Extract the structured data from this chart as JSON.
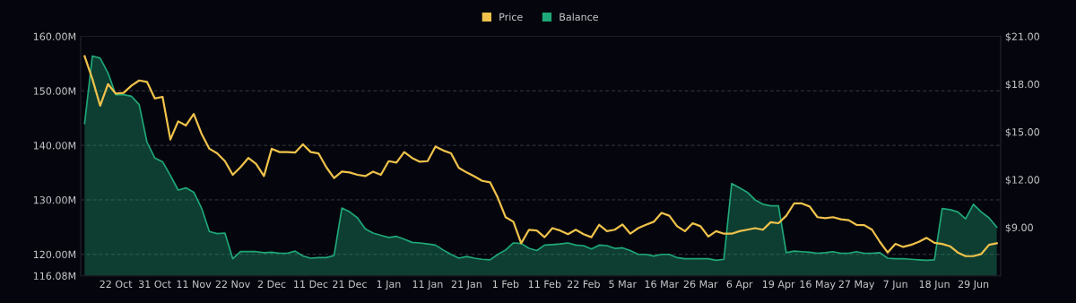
{
  "chart_data": {
    "type": "area",
    "categories": [
      null,
      null,
      null,
      null,
      "22 Oct",
      null,
      null,
      null,
      null,
      "31 Oct",
      null,
      null,
      null,
      null,
      "11 Nov",
      null,
      null,
      null,
      null,
      "22 Nov",
      null,
      null,
      null,
      null,
      "2 Dec",
      null,
      null,
      null,
      null,
      "11 Dec",
      null,
      null,
      null,
      null,
      "21 Dec",
      null,
      null,
      null,
      null,
      "1 Jan",
      null,
      null,
      null,
      null,
      "11 Jan",
      null,
      null,
      null,
      null,
      "21 Jan",
      null,
      null,
      null,
      null,
      "1 Feb",
      null,
      null,
      null,
      null,
      "11 Feb",
      null,
      null,
      null,
      null,
      "22 Feb",
      null,
      null,
      null,
      null,
      "5 Mar",
      null,
      null,
      null,
      null,
      "16 Mar",
      null,
      null,
      null,
      null,
      "26 Mar",
      null,
      null,
      null,
      null,
      "6 Apr",
      null,
      null,
      null,
      null,
      "19 Apr",
      null,
      null,
      null,
      null,
      "16 May",
      null,
      null,
      null,
      null,
      "27 May",
      null,
      null,
      null,
      null,
      "7 Jun",
      null,
      null,
      null,
      null,
      "18 Jun",
      null,
      null,
      null,
      null,
      "29 Jun",
      null,
      null,
      null
    ],
    "series": [
      {
        "name": "Price",
        "type": "line",
        "axis": "y2",
        "color": "#f0c24b",
        "values": [
          19.76,
          18.32,
          16.64,
          18.0,
          17.4,
          17.45,
          17.9,
          18.23,
          18.14,
          17.1,
          17.2,
          14.52,
          15.66,
          15.4,
          16.12,
          14.88,
          13.94,
          13.65,
          13.16,
          12.3,
          12.78,
          13.36,
          12.98,
          12.22,
          13.94,
          13.73,
          13.73,
          13.7,
          14.22,
          13.73,
          13.65,
          12.78,
          12.1,
          12.5,
          12.45,
          12.3,
          12.22,
          12.5,
          12.3,
          13.16,
          13.07,
          13.73,
          13.36,
          13.12,
          13.16,
          14.08,
          13.83,
          13.65,
          12.74,
          12.45,
          12.2,
          11.92,
          11.83,
          10.86,
          9.64,
          9.35,
          8.0,
          8.85,
          8.8,
          8.38,
          8.95,
          8.8,
          8.57,
          8.85,
          8.57,
          8.38,
          9.16,
          8.76,
          8.85,
          9.18,
          8.6,
          8.95,
          9.16,
          9.35,
          9.91,
          9.73,
          9.07,
          8.76,
          9.26,
          9.07,
          8.42,
          8.76,
          8.6,
          8.6,
          8.76,
          8.85,
          8.95,
          8.85,
          9.32,
          9.26,
          9.73,
          10.5,
          10.5,
          10.31,
          9.64,
          9.58,
          9.64,
          9.51,
          9.45,
          9.16,
          9.14,
          8.85,
          8.09,
          7.42,
          7.96,
          7.77,
          7.9,
          8.09,
          8.34,
          8.03,
          7.96,
          7.81,
          7.42,
          7.19,
          7.19,
          7.32,
          7.9,
          8.0
        ]
      },
      {
        "name": "Balance",
        "color": "#1fa878",
        "values": [
          144,
          156.4,
          156,
          153.3,
          149.3,
          149.3,
          149,
          147.5,
          140.6,
          137.7,
          137,
          134.5,
          131.8,
          132.2,
          131.4,
          128.5,
          124.2,
          123.8,
          123.9,
          119.2,
          120.5,
          120.5,
          120.5,
          120.3,
          120.4,
          120.2,
          120.2,
          120.6,
          119.7,
          119.3,
          119.4,
          119.4,
          119.8,
          128.5,
          127.8,
          126.7,
          124.7,
          123.9,
          123.5,
          123.1,
          123.3,
          122.8,
          122.2,
          122.1,
          121.9,
          121.7,
          120.8,
          120,
          119.3,
          119.6,
          119.3,
          119.1,
          119,
          120,
          120.8,
          122.1,
          122,
          121.1,
          120.7,
          121.7,
          121.8,
          121.9,
          122.1,
          121.7,
          121.6,
          121,
          121.7,
          121.6,
          121.1,
          121.2,
          120.7,
          120,
          120,
          119.7,
          120,
          120,
          119.4,
          119.2,
          119.2,
          119.2,
          119.2,
          118.9,
          119.1,
          133,
          132.2,
          131.4,
          130,
          129.2,
          128.9,
          128.9,
          120.3,
          120.6,
          120.5,
          120.4,
          120.2,
          120.3,
          120.5,
          120.2,
          120.2,
          120.5,
          120.2,
          120.2,
          120.3,
          119.3,
          119.2,
          119.2,
          119.1,
          119,
          118.9,
          119,
          128.4,
          128.2,
          127.8,
          126.5,
          129.2,
          127.8,
          126.7,
          125
        ]
      }
    ],
    "ylim": [
      116.08,
      160
    ],
    "yticks": [
      {
        "value": 116.08,
        "label": "116.08M"
      },
      {
        "value": 120,
        "label": "120.00M"
      },
      {
        "value": 130,
        "label": "130.00M"
      },
      {
        "value": 140,
        "label": "140.00M"
      },
      {
        "value": 150,
        "label": "150.00M"
      },
      {
        "value": 160,
        "label": "160.00M"
      }
    ],
    "y2lim": [
      5.96,
      21
    ],
    "y2ticks": [
      {
        "value": 9,
        "label": "$9.00"
      },
      {
        "value": 12,
        "label": "$12.00"
      },
      {
        "value": 15,
        "label": "$15.00"
      },
      {
        "value": 18,
        "label": "$18.00"
      },
      {
        "value": 21,
        "label": "$21.00"
      }
    ],
    "grid": "y",
    "legend": "top",
    "line_style": "solid",
    "marker": "none"
  }
}
